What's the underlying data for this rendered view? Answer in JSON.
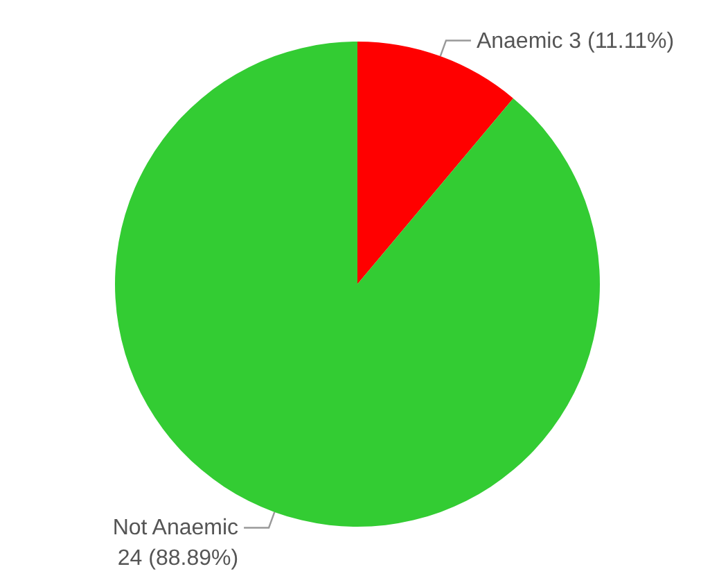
{
  "chart_data": {
    "type": "pie",
    "categories": [
      "Anaemic",
      "Not Anaemic"
    ],
    "values": [
      3,
      24
    ],
    "colors": [
      "#ff0000",
      "#33cc33"
    ],
    "value_labels": [
      "3 (11.11%)",
      "24 (88.89%)"
    ],
    "legend": false
  }
}
